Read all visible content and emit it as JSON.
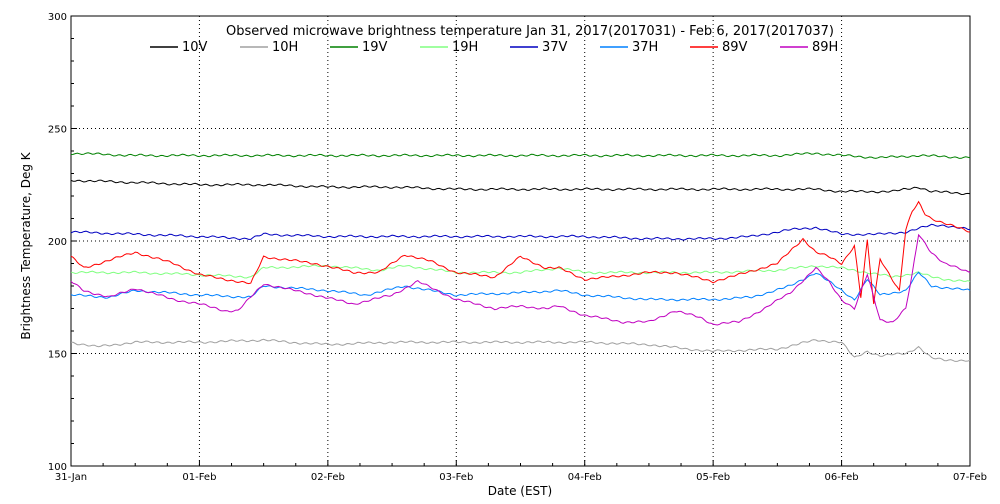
{
  "chart_data": {
    "type": "line",
    "title": "Observed microwave brightness temperature Jan 31, 2017(2017031) - Feb  6, 2017(2017037)",
    "xlabel": "Date (EST)",
    "ylabel": "Brightness Temperature, Deg K",
    "x_ticks": [
      "31-Jan",
      "01-Feb",
      "02-Feb",
      "03-Feb",
      "04-Feb",
      "05-Feb",
      "06-Feb",
      "07-Feb"
    ],
    "xlim_days": [
      0,
      7
    ],
    "ylim": [
      100,
      300
    ],
    "y_ticks": [
      100,
      150,
      200,
      250,
      300
    ],
    "grid": "dotted",
    "legend": "top",
    "series": [
      {
        "name": "10V",
        "color": "#000000",
        "x": [
          0,
          0.5,
          1,
          1.5,
          2,
          2.5,
          3,
          3.5,
          4,
          4.5,
          5,
          5.5,
          5.8,
          6.0,
          6.2,
          6.4,
          6.6,
          6.7,
          7
        ],
        "y": [
          227,
          226,
          225,
          225,
          224,
          224,
          223,
          223,
          223,
          223,
          223,
          223,
          223,
          222,
          222,
          222,
          224,
          222,
          221
        ]
      },
      {
        "name": "10H",
        "color": "#a0a0a0",
        "x": [
          0,
          0.2,
          0.5,
          1,
          1.5,
          1.7,
          2,
          2.5,
          3,
          3.5,
          4,
          4.5,
          4.8,
          5,
          5.5,
          5.8,
          6.0,
          6.1,
          6.2,
          6.3,
          6.5,
          6.6,
          6.7,
          6.8,
          7
        ],
        "y": [
          155,
          153,
          155,
          155,
          156,
          155,
          154,
          155,
          155,
          155,
          155,
          154,
          152,
          151,
          152,
          156,
          155,
          148,
          151,
          149,
          150,
          153,
          148,
          147,
          147
        ]
      },
      {
        "name": "19V",
        "color": "#008000",
        "x": [
          0,
          0.5,
          1,
          1.5,
          2,
          2.5,
          3,
          3.5,
          4,
          4.5,
          5,
          5.5,
          5.8,
          6.0,
          6.3,
          6.6,
          7
        ],
        "y": [
          239,
          238,
          238,
          238,
          238,
          238,
          238,
          238,
          238,
          238,
          238,
          238,
          239,
          238,
          237,
          238,
          237
        ]
      },
      {
        "name": "19H",
        "color": "#80ff80",
        "x": [
          0,
          0.5,
          1,
          1.4,
          1.5,
          2,
          2.4,
          2.6,
          3,
          3.5,
          3.8,
          4,
          4.5,
          5,
          5.5,
          5.8,
          6.0,
          6.2,
          6.4,
          6.6,
          6.7,
          6.8,
          7
        ],
        "y": [
          186,
          186,
          185,
          184,
          188,
          189,
          187,
          189,
          186,
          186,
          188,
          186,
          186,
          186,
          187,
          189,
          188,
          186,
          184,
          186,
          184,
          183,
          182
        ]
      },
      {
        "name": "37V",
        "color": "#0000c0",
        "x": [
          0,
          0.5,
          1,
          1.4,
          1.5,
          2,
          2.5,
          3,
          3.5,
          4,
          4.5,
          5,
          5.3,
          5.6,
          5.8,
          6.0,
          6.3,
          6.5,
          6.7,
          6.8,
          7
        ],
        "y": [
          204,
          203,
          202,
          201,
          203,
          202,
          202,
          202,
          202,
          202,
          201,
          201,
          202,
          205,
          206,
          203,
          203,
          204,
          207,
          207,
          205
        ]
      },
      {
        "name": "37H",
        "color": "#0080ff",
        "x": [
          0,
          0.3,
          0.5,
          1,
          1.4,
          1.5,
          2,
          2.3,
          2.6,
          3,
          3.5,
          3.8,
          4,
          4.5,
          5,
          5.3,
          5.6,
          5.8,
          6.0,
          6.1,
          6.2,
          6.3,
          6.5,
          6.6,
          6.7,
          7
        ],
        "y": [
          176,
          175,
          178,
          176,
          175,
          180,
          178,
          176,
          180,
          176,
          177,
          178,
          176,
          174,
          174,
          175,
          180,
          186,
          178,
          174,
          183,
          176,
          178,
          186,
          180,
          178
        ]
      },
      {
        "name": "89V",
        "color": "#ff0000",
        "x": [
          0,
          0.1,
          0.5,
          0.8,
          1,
          1.2,
          1.4,
          1.5,
          1.9,
          2.2,
          2.4,
          2.6,
          2.8,
          3.0,
          3.3,
          3.5,
          3.7,
          3.8,
          4.0,
          4.2,
          4.5,
          4.7,
          5.0,
          5.2,
          5.5,
          5.7,
          5.8,
          5.9,
          6.0,
          6.1,
          6.15,
          6.2,
          6.25,
          6.3,
          6.45,
          6.5,
          6.55,
          6.6,
          6.65,
          6.7,
          6.8,
          7
        ],
        "y": [
          193,
          188,
          195,
          190,
          185,
          183,
          181,
          193,
          190,
          186,
          186,
          194,
          191,
          186,
          184,
          193,
          188,
          188,
          183,
          184,
          186,
          186,
          182,
          185,
          190,
          201,
          195,
          193,
          190,
          198,
          175,
          200,
          172,
          192,
          178,
          205,
          213,
          217,
          212,
          210,
          208,
          204
        ]
      },
      {
        "name": "89H",
        "color": "#c000c0",
        "x": [
          0,
          0.1,
          0.3,
          0.5,
          0.8,
          1,
          1.2,
          1.3,
          1.5,
          1.9,
          2.2,
          2.5,
          2.7,
          3.0,
          3.3,
          3.5,
          3.7,
          3.8,
          4.0,
          4.3,
          4.5,
          4.7,
          4.9,
          5.0,
          5.2,
          5.4,
          5.6,
          5.8,
          5.9,
          6.0,
          6.1,
          6.2,
          6.3,
          6.4,
          6.5,
          6.55,
          6.6,
          6.7,
          6.8,
          7
        ],
        "y": [
          182,
          178,
          175,
          179,
          174,
          172,
          169,
          169,
          181,
          176,
          172,
          176,
          182,
          174,
          170,
          171,
          170,
          171,
          167,
          164,
          164,
          169,
          166,
          163,
          164,
          170,
          177,
          188,
          182,
          174,
          170,
          185,
          165,
          164,
          170,
          185,
          203,
          195,
          190,
          186
        ]
      }
    ]
  }
}
